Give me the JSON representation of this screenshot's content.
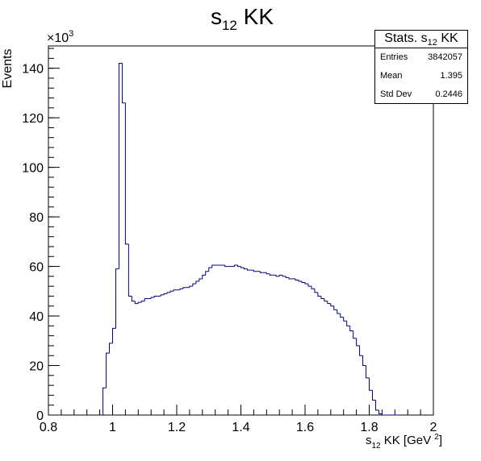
{
  "chart_data": {
    "type": "histogram",
    "title": "s12 KK",
    "title_main": "s",
    "title_sub": "12",
    "title_suffix": " KK",
    "xlabel": "s12 KK [GeV 2]",
    "xlabel_main": "s",
    "xlabel_sub": "12",
    "xlabel_suffix": " KK [GeV ",
    "xlabel_sup": "2",
    "xlabel_close": "]",
    "ylabel": "Events",
    "y_scale_label": "×10",
    "y_scale_exp": "3",
    "xlim": [
      0.8,
      2.0
    ],
    "ylim": [
      0,
      149
    ],
    "x_ticks": [
      0.8,
      1.0,
      1.2,
      1.4,
      1.6,
      1.8,
      2.0
    ],
    "x_tick_labels": [
      "0.8",
      "1",
      "1.2",
      "1.4",
      "1.6",
      "1.8",
      "2"
    ],
    "y_ticks": [
      0,
      20,
      40,
      60,
      80,
      100,
      120,
      140
    ],
    "y_tick_labels": [
      "0",
      "20",
      "40",
      "60",
      "80",
      "100",
      "120",
      "140"
    ],
    "bin_width": 0.01,
    "bins_x_start": [
      0.97,
      0.98,
      0.99,
      1.0,
      1.01,
      1.02,
      1.03,
      1.04,
      1.05,
      1.06,
      1.07,
      1.08,
      1.09,
      1.1,
      1.11,
      1.12,
      1.13,
      1.14,
      1.15,
      1.16,
      1.17,
      1.18,
      1.19,
      1.2,
      1.21,
      1.22,
      1.23,
      1.24,
      1.25,
      1.26,
      1.27,
      1.28,
      1.29,
      1.3,
      1.31,
      1.32,
      1.33,
      1.34,
      1.35,
      1.36,
      1.37,
      1.38,
      1.39,
      1.4,
      1.41,
      1.42,
      1.43,
      1.44,
      1.45,
      1.46,
      1.47,
      1.48,
      1.49,
      1.5,
      1.51,
      1.52,
      1.53,
      1.54,
      1.55,
      1.56,
      1.57,
      1.58,
      1.59,
      1.6,
      1.61,
      1.62,
      1.63,
      1.64,
      1.65,
      1.66,
      1.67,
      1.68,
      1.69,
      1.7,
      1.71,
      1.72,
      1.73,
      1.74,
      1.75,
      1.76,
      1.77,
      1.78,
      1.79,
      1.8,
      1.81,
      1.82,
      1.83,
      1.84,
      1.85,
      1.86,
      1.87,
      1.88,
      1.89
    ],
    "values": [
      11,
      25,
      29,
      35,
      59,
      142,
      126,
      69,
      48,
      46,
      45,
      45.5,
      46,
      47,
      47,
      47.5,
      48,
      48,
      48.5,
      49,
      49.5,
      50,
      50.5,
      50.5,
      51,
      51.5,
      51.5,
      52,
      53,
      54,
      55,
      56.5,
      58,
      59.5,
      60.5,
      60.5,
      60.5,
      60.5,
      60,
      60,
      60,
      60.5,
      60,
      59.5,
      59,
      58.5,
      58.5,
      58,
      58,
      57.5,
      57.5,
      57,
      56.5,
      56.5,
      56,
      56.5,
      56,
      55.5,
      55,
      55,
      54.5,
      54,
      53.5,
      53,
      52,
      51,
      49.5,
      48,
      47,
      46,
      45,
      44,
      42.5,
      41,
      39.5,
      38,
      36,
      34,
      31,
      28,
      24,
      20,
      15,
      10,
      6,
      2,
      0.5,
      0,
      0,
      0,
      0,
      0,
      0
    ],
    "line_color": "#00007f",
    "grid": false,
    "legend": "top-right",
    "stats": {
      "title": "Stats. s12 KK",
      "title_main": "Stats. s",
      "title_sub": "12",
      "title_suffix": " KK",
      "entries_label": "Entries",
      "entries_value": "3842057",
      "mean_label": "Mean",
      "mean_value": "1.395",
      "stddev_label": "Std Dev",
      "stddev_value": "0.2446"
    }
  }
}
